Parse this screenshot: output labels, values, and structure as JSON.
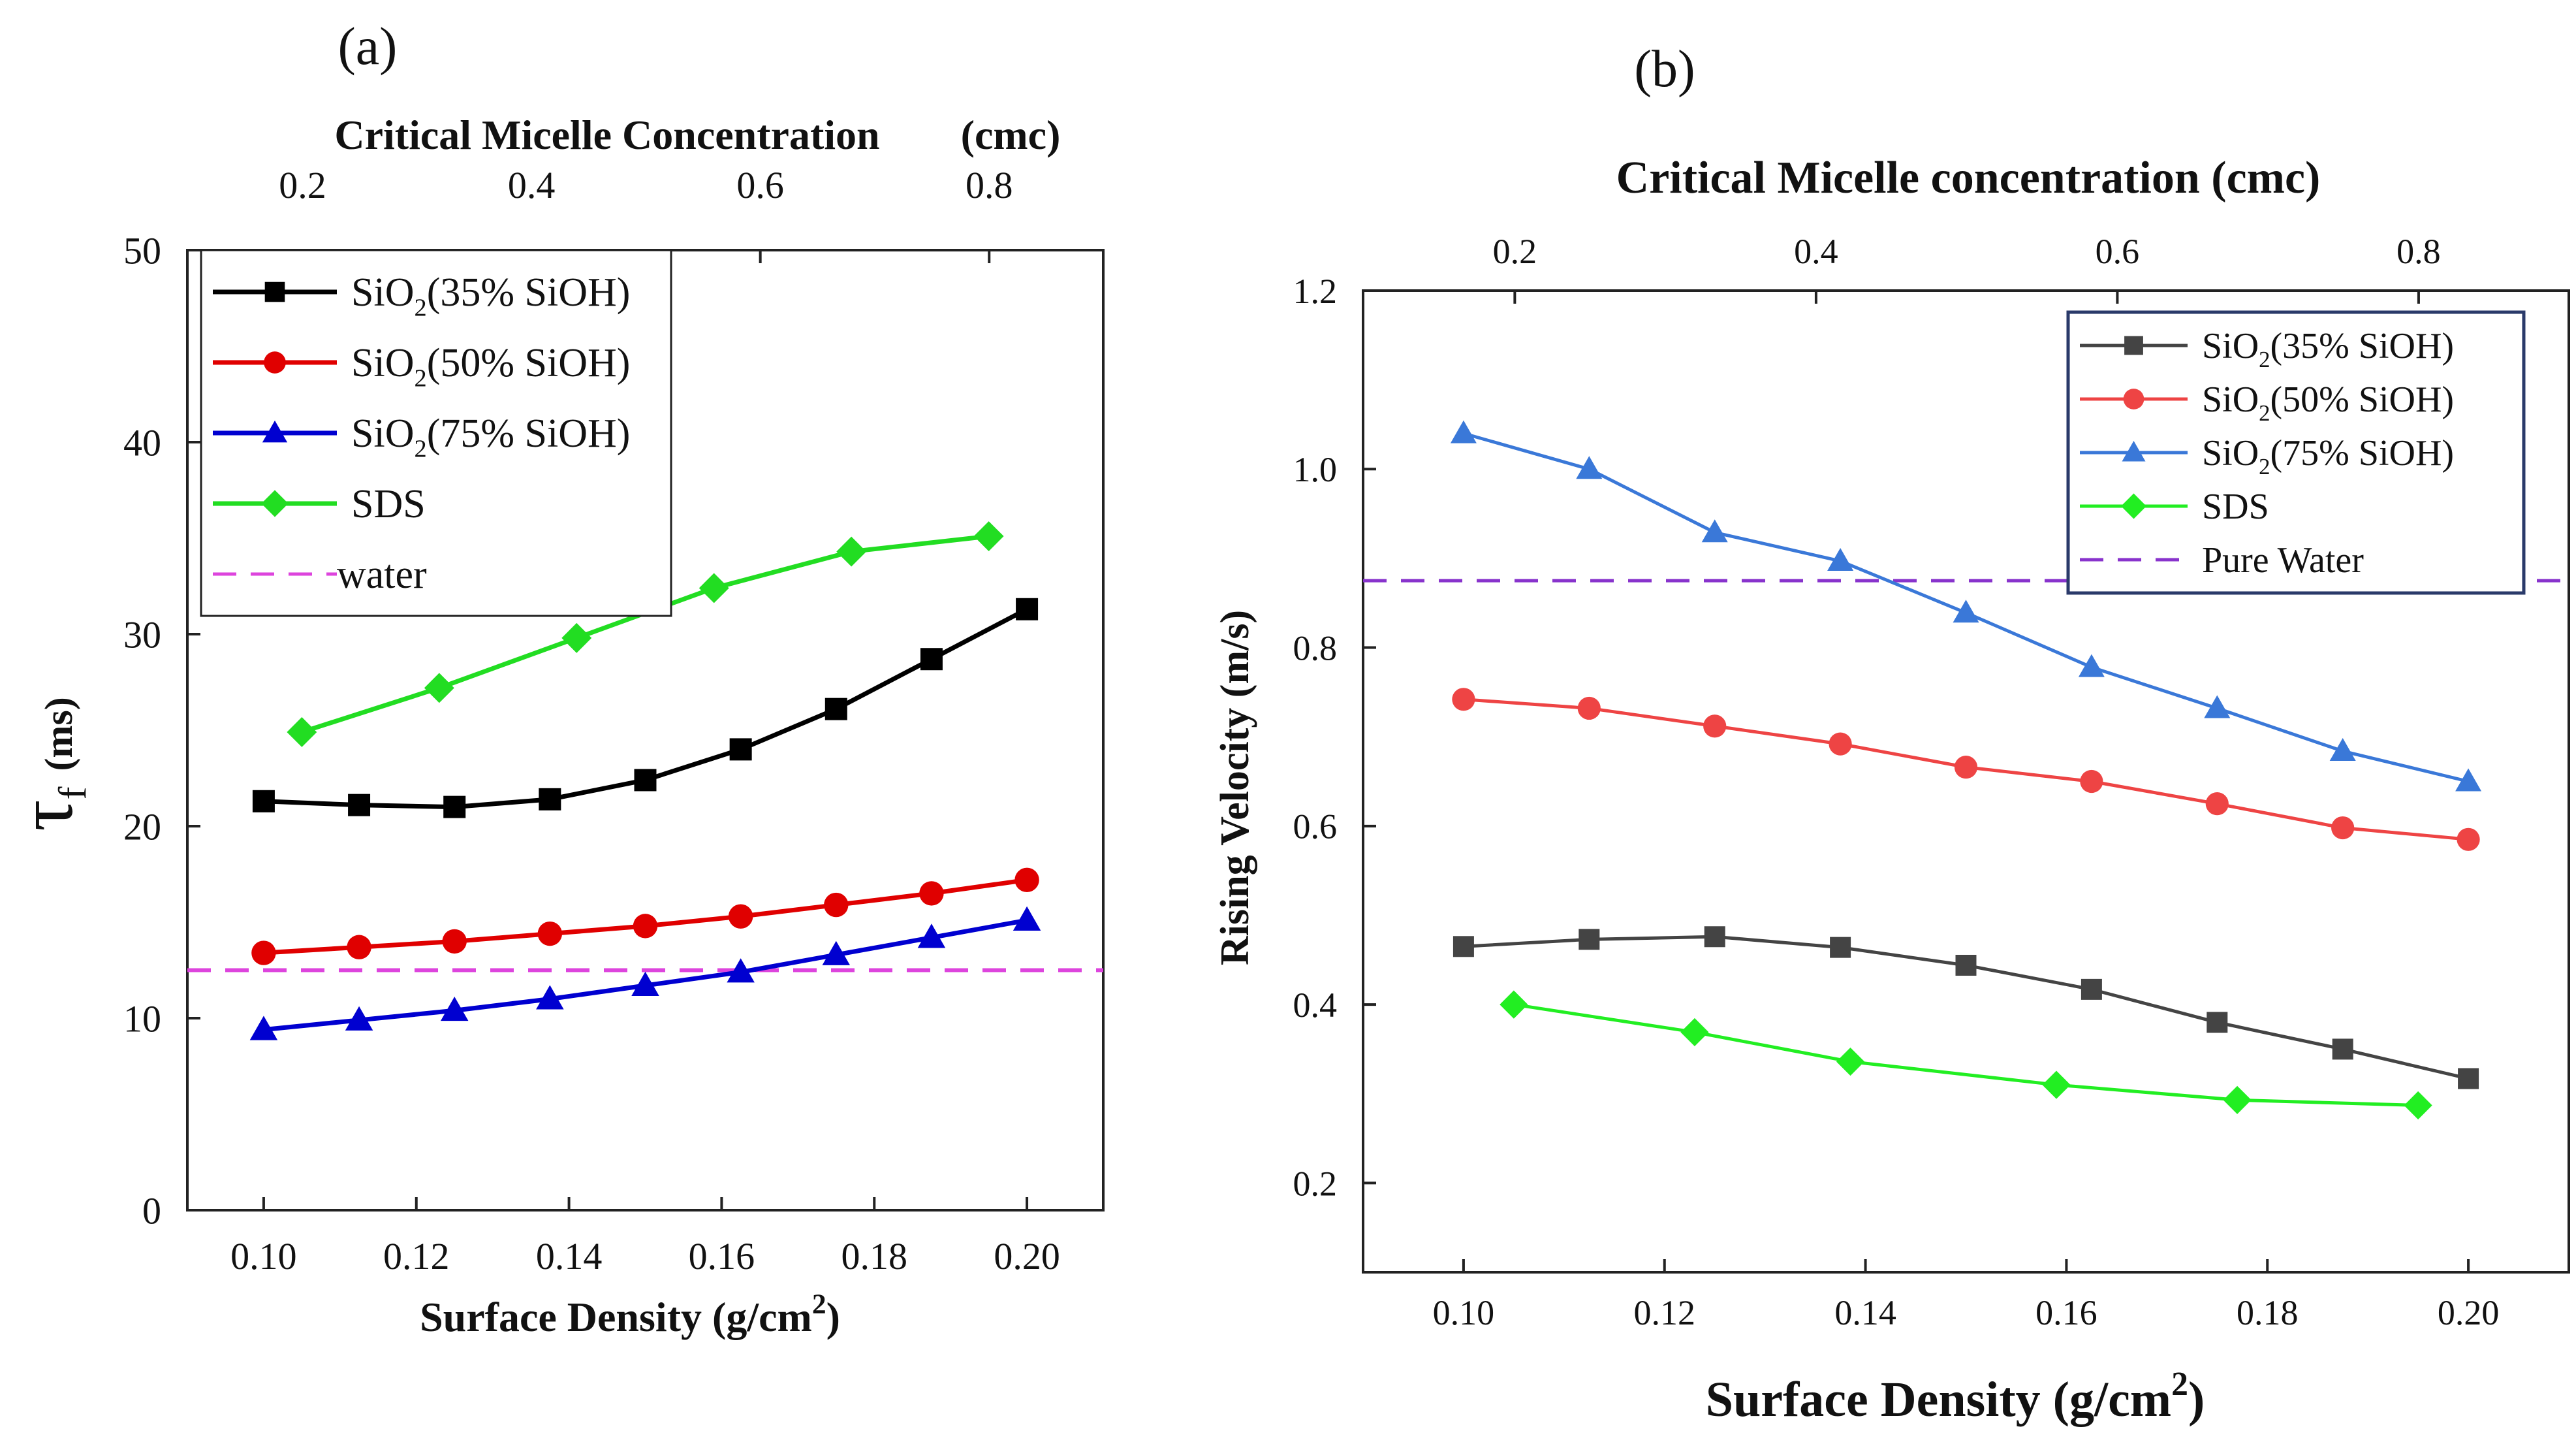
{
  "chart_data": [
    {
      "type": "line",
      "panel_label": "(a)",
      "title": "",
      "xlabel_main": "Surface Density (g/cm",
      "xlabel_sup": "2",
      "xlabel_close": ")",
      "ylabel_symbol": "τ",
      "ylabel_sub": "f",
      "ylabel_unit": "(ms)",
      "top_axis_label_left": "Critical Micelle Concentration",
      "top_axis_label_right": "(cmc)",
      "xlim": [
        0.09,
        0.21
      ],
      "ylim": [
        0,
        50
      ],
      "grid": false,
      "legend_position": "top-left",
      "x_ticks": [
        0.1,
        0.12,
        0.14,
        0.16,
        0.18,
        0.2
      ],
      "x_tick_labels": [
        "0.10",
        "0.12",
        "0.14",
        "0.16",
        "0.18",
        "0.20"
      ],
      "y_ticks": [
        0,
        10,
        20,
        30,
        40,
        50
      ],
      "y_tick_labels": [
        "0",
        "10",
        "20",
        "30",
        "40",
        "50"
      ],
      "top_ticks": [
        0.2,
        0.4,
        0.6,
        0.8
      ],
      "top_tick_labels": [
        "0.2",
        "0.4",
        "0.6",
        "0.8"
      ],
      "top_x_at_bottom_0_10": 0.166,
      "top_x_at_bottom_0_20": 0.833,
      "series": [
        {
          "name": "SiO2(35% SiOH)",
          "legend_base": "SiO",
          "legend_sub": "2",
          "legend_rest": "(35% SiOH)",
          "color": "#000000",
          "marker": "square",
          "x": [
            0.1,
            0.1125,
            0.125,
            0.1375,
            0.15,
            0.1625,
            0.175,
            0.1875,
            0.2
          ],
          "values": [
            21.3,
            21.1,
            21.0,
            21.4,
            22.4,
            24.0,
            26.1,
            28.7,
            31.3
          ]
        },
        {
          "name": "SiO2(50% SiOH)",
          "legend_base": "SiO",
          "legend_sub": "2",
          "legend_rest": "(50% SiOH)",
          "color": "#e00000",
          "marker": "circle",
          "x": [
            0.1,
            0.1125,
            0.125,
            0.1375,
            0.15,
            0.1625,
            0.175,
            0.1875,
            0.2
          ],
          "values": [
            13.4,
            13.7,
            14.0,
            14.4,
            14.8,
            15.3,
            15.9,
            16.5,
            17.2
          ]
        },
        {
          "name": "SiO2(75% SiOH)",
          "legend_base": "SiO",
          "legend_sub": "2",
          "legend_rest": "(75% SiOH)",
          "color": "#0000d0",
          "marker": "triangle",
          "x": [
            0.1,
            0.1125,
            0.125,
            0.1375,
            0.15,
            0.1625,
            0.175,
            0.1875,
            0.2
          ],
          "values": [
            9.4,
            9.9,
            10.4,
            11.0,
            11.7,
            12.4,
            13.3,
            14.2,
            15.1
          ]
        },
        {
          "name": "SDS",
          "legend_base": "SDS",
          "legend_sub": "",
          "legend_rest": "",
          "color": "#22dd22",
          "marker": "diamond",
          "x": [
            0.105,
            0.123,
            0.141,
            0.159,
            0.177,
            0.195
          ],
          "values": [
            24.9,
            27.2,
            29.8,
            32.4,
            34.3,
            35.1
          ]
        }
      ],
      "reference_line": {
        "name": "water",
        "value": 12.5,
        "color": "#dd44dd"
      }
    },
    {
      "type": "line",
      "panel_label": "(b)",
      "title": "",
      "xlabel_main": "Surface Density (g/cm",
      "xlabel_sup": "2",
      "xlabel_close": ")",
      "ylabel": "Rising Velocity (m/s)",
      "top_axis_label": "Critical Micelle concentration (cmc)",
      "xlim": [
        0.09,
        0.21
      ],
      "ylim": [
        0.1,
        1.2
      ],
      "grid": false,
      "legend_position": "top-right",
      "x_ticks": [
        0.1,
        0.12,
        0.14,
        0.16,
        0.18,
        0.2
      ],
      "x_tick_labels": [
        "0.10",
        "0.12",
        "0.14",
        "0.16",
        "0.18",
        "0.20"
      ],
      "y_ticks": [
        0.2,
        0.4,
        0.6,
        0.8,
        1.0,
        1.2
      ],
      "y_tick_labels": [
        "0.2",
        "0.4",
        "0.6",
        "0.8",
        "1.0",
        "1.2"
      ],
      "top_ticks": [
        0.2,
        0.4,
        0.6,
        0.8
      ],
      "top_tick_labels": [
        "0.2",
        "0.4",
        "0.6",
        "0.8"
      ],
      "top_x_at_bottom_0_10": 0.166,
      "top_x_at_bottom_0_20": 0.833,
      "series": [
        {
          "name": "SiO2(35% SiOH)",
          "legend_base": "SiO",
          "legend_sub": "2",
          "legend_rest": "(35% SiOH)",
          "color": "#444444",
          "marker": "square",
          "x": [
            0.1,
            0.1125,
            0.125,
            0.1375,
            0.15,
            0.1625,
            0.175,
            0.1875,
            0.2
          ],
          "values": [
            0.465,
            0.473,
            0.476,
            0.464,
            0.444,
            0.417,
            0.38,
            0.35,
            0.317
          ]
        },
        {
          "name": "SiO2(50% SiOH)",
          "legend_base": "SiO",
          "legend_sub": "2",
          "legend_rest": "(50% SiOH)",
          "color": "#ee4444",
          "marker": "circle",
          "x": [
            0.1,
            0.1125,
            0.125,
            0.1375,
            0.15,
            0.1625,
            0.175,
            0.1875,
            0.2
          ],
          "values": [
            0.742,
            0.732,
            0.712,
            0.692,
            0.666,
            0.65,
            0.625,
            0.598,
            0.585
          ]
        },
        {
          "name": "SiO2(75% SiOH)",
          "legend_base": "SiO",
          "legend_sub": "2",
          "legend_rest": "(75% SiOH)",
          "color": "#3a78d8",
          "marker": "triangle",
          "x": [
            0.1,
            0.1125,
            0.125,
            0.1375,
            0.15,
            0.1625,
            0.175,
            0.1875,
            0.2
          ],
          "values": [
            1.04,
            1.0,
            0.929,
            0.897,
            0.839,
            0.778,
            0.732,
            0.684,
            0.65
          ]
        },
        {
          "name": "SDS",
          "legend_base": "SDS",
          "legend_sub": "",
          "legend_rest": "",
          "color": "#22ee22",
          "marker": "diamond",
          "x": [
            0.105,
            0.123,
            0.1385,
            0.159,
            0.177,
            0.195
          ],
          "values": [
            0.4,
            0.369,
            0.336,
            0.31,
            0.293,
            0.287
          ]
        }
      ],
      "reference_line": {
        "name": "Pure Water",
        "value": 0.875,
        "color": "#8833cc"
      }
    }
  ]
}
